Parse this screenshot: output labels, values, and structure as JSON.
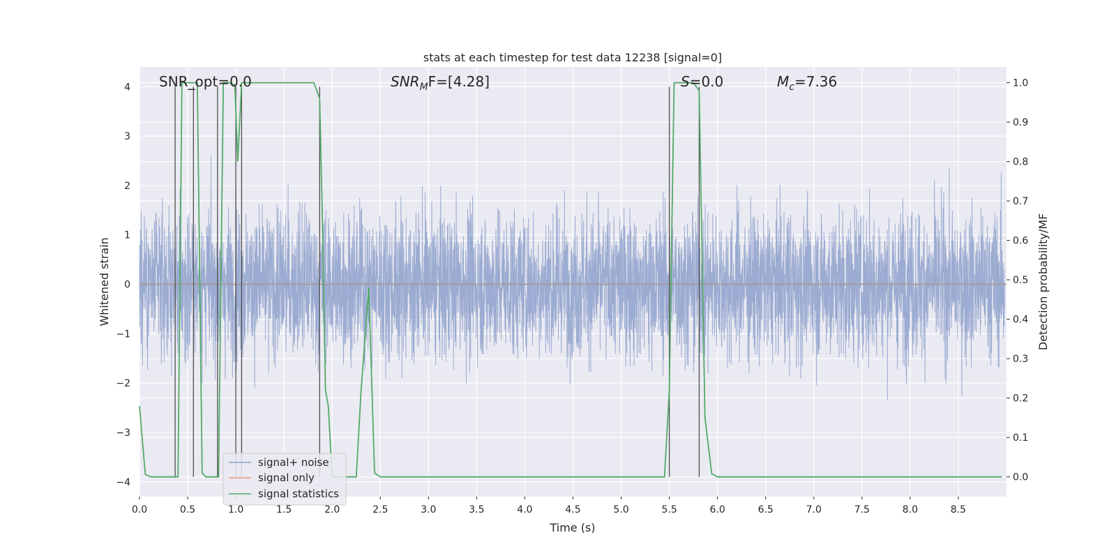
{
  "chart_data": {
    "type": "line",
    "title": "stats at each timestep for test data 12238 [signal=0]",
    "xlabel": "Time (s)",
    "ylabel_left": "Whitened strain",
    "ylabel_right": "Detection probability/MF",
    "xlim": [
      0.0,
      9.0
    ],
    "ylim_left": [
      -4.3,
      4.4
    ],
    "ylim_right": [
      -0.05,
      1.04
    ],
    "x_ticks": [
      0.0,
      0.5,
      1.0,
      1.5,
      2.0,
      2.5,
      3.0,
      3.5,
      4.0,
      4.5,
      5.0,
      5.5,
      6.0,
      6.5,
      7.0,
      7.5,
      8.0,
      8.5
    ],
    "x_tick_labels": [
      "0.0",
      "0.5",
      "1.0",
      "1.5",
      "2.0",
      "2.5",
      "3.0",
      "3.5",
      "4.0",
      "4.5",
      "5.0",
      "5.5",
      "6.0",
      "6.5",
      "7.0",
      "7.5",
      "8.0",
      "8.5"
    ],
    "y_left_ticks": [
      -4,
      -3,
      -2,
      -1,
      0,
      1,
      2,
      3,
      4
    ],
    "y_left_tick_labels": [
      "−4",
      "−3",
      "−2",
      "−1",
      "0",
      "1",
      "2",
      "3",
      "4"
    ],
    "y_right_ticks": [
      0.0,
      0.1,
      0.2,
      0.3,
      0.4,
      0.5,
      0.6,
      0.7,
      0.8,
      0.9,
      1.0
    ],
    "y_right_tick_labels": [
      "0.0",
      "0.1",
      "0.2",
      "0.3",
      "0.4",
      "0.5",
      "0.6",
      "0.7",
      "0.8",
      "0.9",
      "1.0"
    ],
    "grid": true,
    "legend_position": "lower-left",
    "annotations": {
      "snr_opt": "SNR_opt=0.0",
      "snr_mf_symbol": "SNR",
      "snr_mf_sub": "M",
      "snr_mf_rest": "F=[4.28]",
      "s_symbol": "S",
      "s_value": "=0.0",
      "mc_symbol": "M",
      "mc_sub": "c",
      "mc_value": "=7.36"
    },
    "series": [
      {
        "name": "signal+ noise",
        "color": "#8da0cb",
        "description_envelope": {
          "mean": 0.0,
          "typical_abs_max": 2.5,
          "peak_max": 3.9,
          "peak_min": -3.7,
          "sample_step_s": 0.001
        }
      },
      {
        "name": "signal only",
        "color": "#e8917a",
        "values": "zero"
      },
      {
        "name": "signal statistics",
        "color": "#55a868",
        "x": [
          0.0,
          0.06,
          0.12,
          0.37,
          0.4,
          0.44,
          0.55,
          0.6,
          0.65,
          0.69,
          0.76,
          0.82,
          0.87,
          0.93,
          0.99,
          1.02,
          1.06,
          1.12,
          1.18,
          1.25,
          1.5,
          1.75,
          1.81,
          1.87,
          1.9,
          1.93,
          1.96,
          2.0,
          2.1,
          2.2,
          2.25,
          2.3,
          2.38,
          2.44,
          2.5,
          2.6,
          3.0,
          4.0,
          5.0,
          5.4,
          5.45,
          5.5,
          5.55,
          5.6,
          5.7,
          5.75,
          5.81,
          5.87,
          5.94,
          6.0,
          6.1,
          6.5,
          7.0,
          8.0,
          8.95
        ],
        "y": [
          0.18,
          0.006,
          0.0,
          0.0,
          0.0,
          1.0,
          1.0,
          1.0,
          0.01,
          0.0,
          0.0,
          0.0,
          1.0,
          1.0,
          0.995,
          0.8,
          1.0,
          1.0,
          1.0,
          1.0,
          1.0,
          1.0,
          1.0,
          0.96,
          0.64,
          0.22,
          0.18,
          0.0,
          0.0,
          0.0,
          0.0,
          0.22,
          0.48,
          0.01,
          0.0,
          0.0,
          0.0,
          0.0,
          0.0,
          0.0,
          0.0,
          0.22,
          1.0,
          1.0,
          1.0,
          1.0,
          0.98,
          0.15,
          0.008,
          0.0,
          0.0,
          0.0,
          0.0,
          0.0,
          0.0
        ]
      }
    ],
    "vertical_markers_x": [
      0.37,
      0.56,
      0.81,
      1.0,
      1.06,
      1.87,
      5.5,
      5.81
    ]
  },
  "colors": {
    "axes_bg": "#eaeaf2",
    "grid": "#ffffff",
    "noise": "#8da0cb",
    "signal_only": "#e8917a",
    "stats": "#55a868",
    "markers": "#4d4d4d"
  }
}
